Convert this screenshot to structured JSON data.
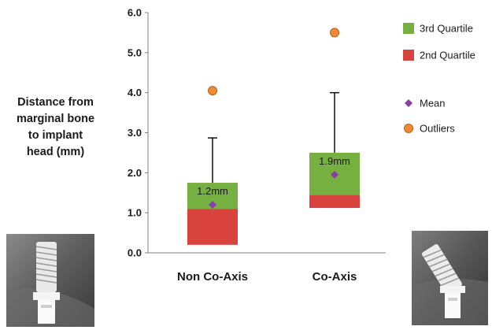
{
  "chart_data": {
    "type": "box",
    "ylabel": "Distance from marginal bone to implant head (mm)",
    "xlabel": "",
    "ylim": [
      0,
      6
    ],
    "yticks": [
      "0.0",
      "1.0",
      "2.0",
      "3.0",
      "4.0",
      "5.0",
      "6.0"
    ],
    "categories": [
      "Non Co-Axis",
      "Co-Axis"
    ],
    "boxes": [
      {
        "category": "Non Co-Axis",
        "min": 0.2,
        "q1": 0.2,
        "median": 1.1,
        "q3": 1.75,
        "max": 2.87,
        "mean": 1.2,
        "mean_label": "1.2mm",
        "outliers": [
          4.05
        ]
      },
      {
        "category": "Co-Axis",
        "min": 1.12,
        "q1": 1.12,
        "median": 1.45,
        "q3": 2.5,
        "max": 4.0,
        "mean": 1.95,
        "mean_label": "1.9mm",
        "outliers": [
          5.5
        ]
      }
    ],
    "legend": [
      {
        "label": "3rd Quartile",
        "symbol": "square",
        "color": "#76b041"
      },
      {
        "label": "2nd Quartile",
        "symbol": "square",
        "color": "#d9433e"
      },
      {
        "label": "Mean",
        "symbol": "diamond",
        "color": "#8b3ea8"
      },
      {
        "label": "Outliers",
        "symbol": "circle",
        "color": "#f0883a"
      }
    ],
    "legend_position": "right",
    "grid": false
  },
  "images": [
    {
      "name": "xray-non-co-axis",
      "description": ""
    },
    {
      "name": "xray-co-axis",
      "description": ""
    }
  ]
}
